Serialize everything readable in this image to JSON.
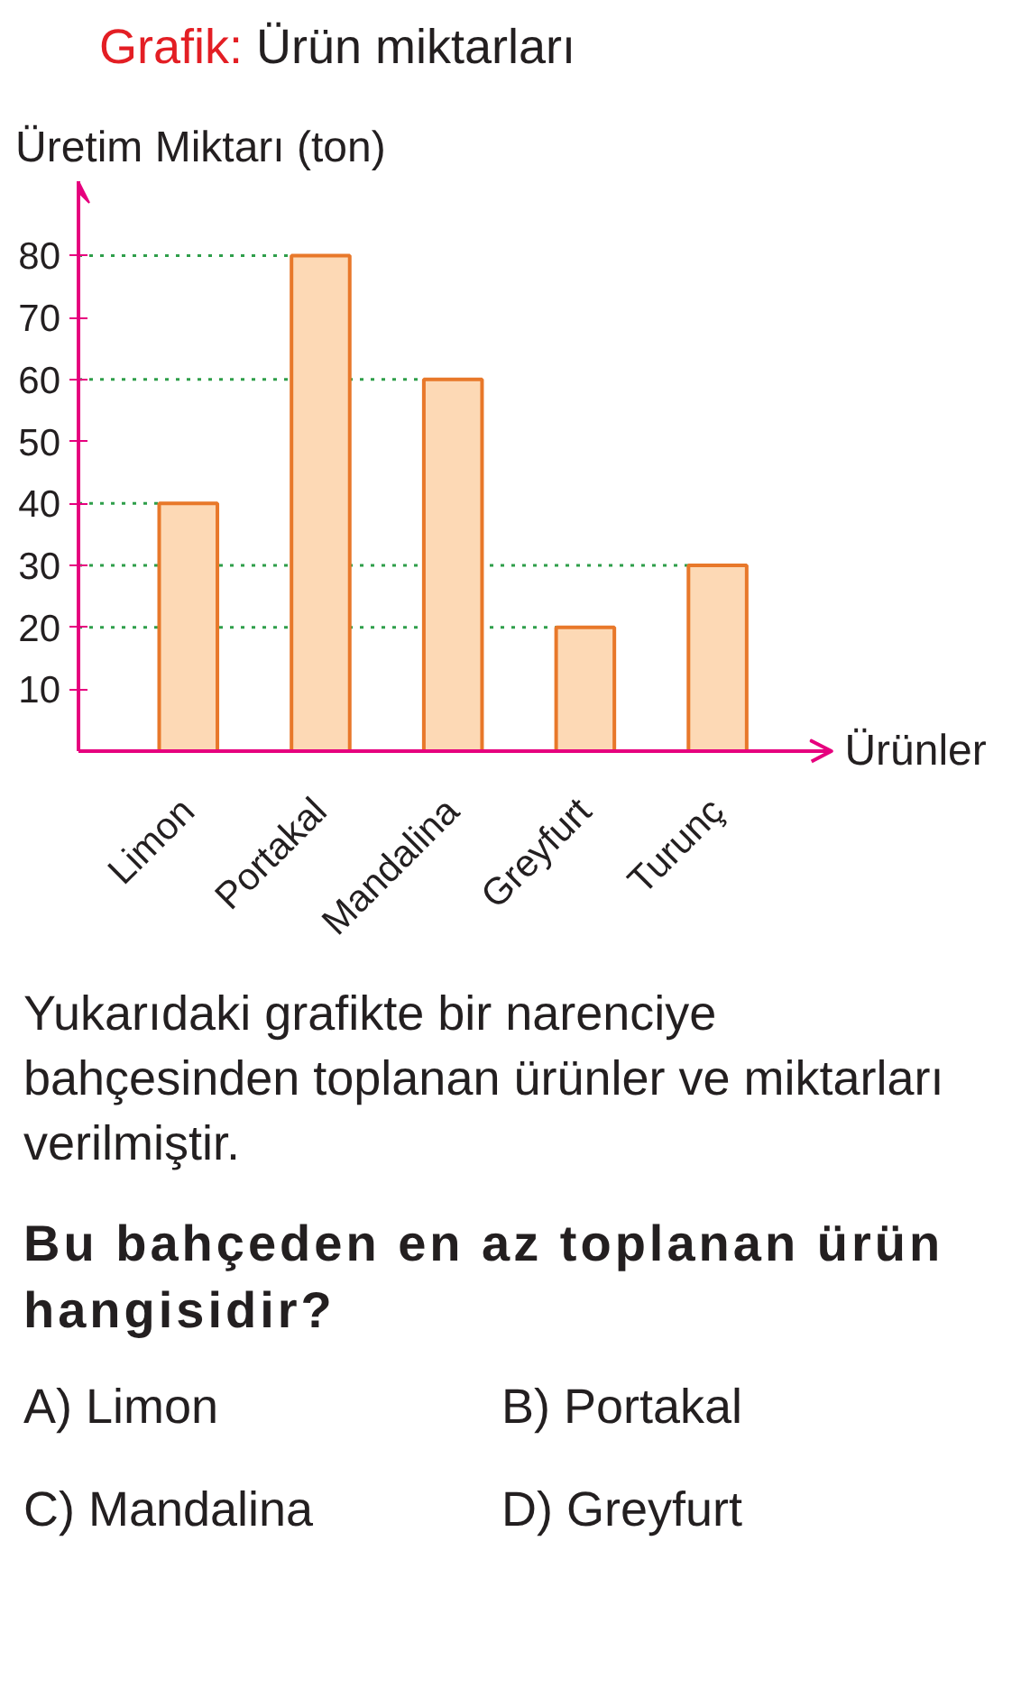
{
  "chart_data": {
    "type": "bar",
    "title": "Grafik: Ürün miktarları",
    "ylabel": "Üretim Miktarı (ton)",
    "xlabel": "Ürünler",
    "categories": [
      "Limon",
      "Portakal",
      "Mandalina",
      "Greyfurt",
      "Turunç"
    ],
    "values": [
      40,
      80,
      60,
      20,
      30
    ],
    "color": "#fdd9b5",
    "ylim": [
      0,
      92
    ],
    "yticks": [
      10,
      20,
      30,
      40,
      50,
      60,
      70,
      80
    ],
    "grid": false,
    "ref_lines": [
      {
        "axis": "y",
        "value": 40,
        "color": "#2e9e4a",
        "line_style": "dotted"
      },
      {
        "axis": "y",
        "value": 80,
        "color": "#2e9e4a",
        "line_style": "dotted"
      },
      {
        "axis": "y",
        "value": 60,
        "color": "#2e9e4a",
        "line_style": "dotted"
      },
      {
        "axis": "y",
        "value": 20,
        "color": "#2e9e4a",
        "line_style": "dotted"
      },
      {
        "axis": "y",
        "value": 30,
        "color": "#2e9e4a",
        "line_style": "dotted"
      }
    ],
    "annotations": [
      "Yukarıdaki grafikte bir narenciye bahçesinden toplanan ürünler ve miktarları verilmiştir.",
      "Bu bahçeden en az toplanan ürün hangisidir?",
      "A) Limon",
      "B) Portakal",
      "C) Mandalina",
      "D) Greyfurt"
    ]
  }
}
